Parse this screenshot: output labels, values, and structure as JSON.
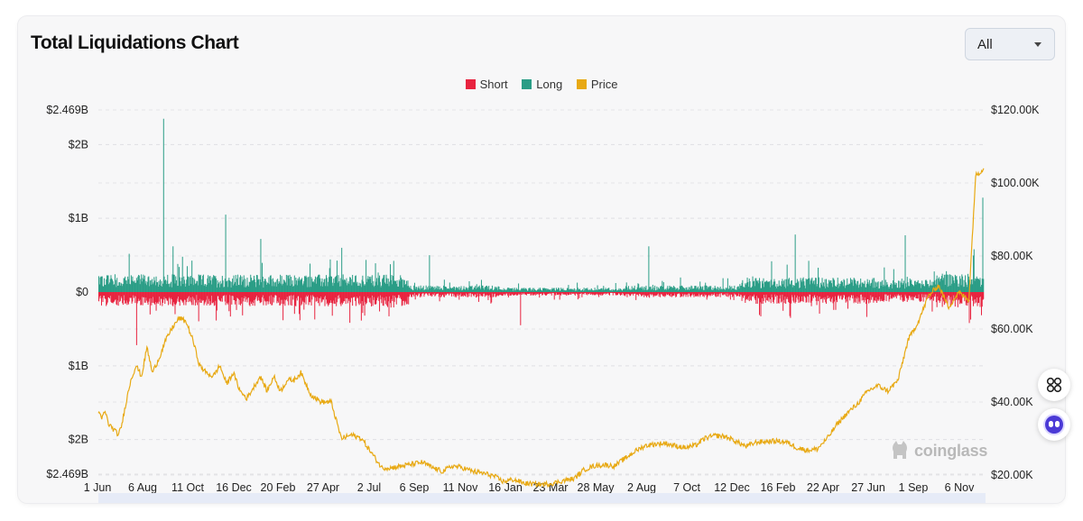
{
  "header": {
    "title": "Total Liquidations Chart"
  },
  "range_select": {
    "value": "All"
  },
  "side_buttons": [
    "grid-apps",
    "ai-assistant"
  ],
  "watermark": "coinglass",
  "colors": {
    "short": "#e8233f",
    "long": "#2a9d86",
    "price": "#e8a913"
  },
  "chart_data": {
    "type": "bar",
    "title": "Total Liquidations Chart",
    "legend": [
      "Short",
      "Long",
      "Price"
    ],
    "legend_position": "top-center",
    "grid": true,
    "x_tick_labels": [
      "1 Jun",
      "6 Aug",
      "11 Oct",
      "16 Dec",
      "20 Feb",
      "27 Apr",
      "2 Jul",
      "6 Sep",
      "11 Nov",
      "16 Jan",
      "23 Mar",
      "28 May",
      "2 Aug",
      "7 Oct",
      "12 Dec",
      "16 Feb",
      "22 Apr",
      "27 Jun",
      "1 Sep",
      "6 Nov"
    ],
    "y_left": {
      "range": [
        -2.469,
        2.469
      ],
      "ticks": [
        2.469,
        2,
        1,
        0,
        -1,
        -2,
        -2.469
      ],
      "tick_labels": [
        "$2.469B",
        "$2B",
        "$1B",
        "$0",
        "$1B",
        "$2B",
        "$2.469B"
      ]
    },
    "y_right": {
      "range": [
        20,
        120
      ],
      "ticks": [
        120,
        100,
        80,
        60,
        40,
        20
      ],
      "tick_labels": [
        "$120.00K",
        "$100.00K",
        "$80.00K",
        "$60.00K",
        "$40.00K",
        "$20.00K"
      ]
    },
    "price_series": {
      "name": "Price",
      "unit": "thousand USD",
      "x_days": [
        0,
        5,
        10,
        15,
        20,
        25,
        30,
        35,
        40,
        48,
        56,
        64,
        72,
        80,
        90,
        100,
        110,
        120,
        130,
        140,
        150,
        160,
        170,
        180,
        190,
        200,
        210,
        220,
        230,
        240,
        250,
        260,
        270,
        280,
        290,
        300,
        315,
        330,
        345,
        360,
        375,
        390,
        405,
        420,
        435,
        450,
        465,
        480,
        495,
        510,
        525,
        540,
        555,
        570,
        585,
        600,
        615,
        630,
        645,
        660,
        675,
        690,
        705,
        720,
        735,
        750,
        765,
        780,
        795,
        810,
        825,
        840,
        855,
        870,
        885,
        900,
        915,
        930,
        945,
        960,
        975,
        990,
        1005,
        1020,
        1035,
        1050,
        1065,
        1080,
        1095,
        1110,
        1125,
        1140,
        1155,
        1170,
        1185,
        1200,
        1215,
        1230,
        1245,
        1260,
        1275,
        1290,
        1300,
        1312
      ],
      "values": [
        37,
        35.5,
        37.5,
        34,
        33,
        32,
        31,
        34,
        39,
        46,
        50,
        47,
        55,
        48,
        52,
        57,
        60.5,
        63,
        62,
        57,
        50,
        48,
        47,
        50,
        45,
        48,
        43,
        41,
        44,
        47,
        43,
        47,
        43,
        46,
        46,
        48,
        42,
        40,
        40,
        30,
        31,
        30,
        26,
        22,
        22,
        22.5,
        23,
        23.5,
        22,
        21,
        22.5,
        22,
        21,
        20.5,
        19.8,
        18.2,
        18.8,
        17.8,
        17.5,
        17.4,
        17.8,
        18.5,
        19,
        21.5,
        22.5,
        22.8,
        22.5,
        24.5,
        26.5,
        28,
        28.5,
        28.7,
        28,
        27.5,
        28.1,
        30.2,
        30.8,
        30.5,
        29.2,
        27.8,
        29,
        29.2,
        29.3,
        29,
        27.5,
        26.8,
        27.1,
        30,
        34,
        37,
        39.5,
        43,
        44.5,
        43,
        46,
        57,
        62,
        69,
        72,
        66,
        70,
        68,
        102,
        104
      ]
    },
    "series": [
      {
        "name": "Long",
        "peaks": [
          {
            "x_days": 96,
            "value": 2.35
          },
          {
            "x_days": 188,
            "value": 1.05
          },
          {
            "x_days": 110,
            "value": 0.62
          },
          {
            "x_days": 240,
            "value": 0.72
          },
          {
            "x_days": 360,
            "value": 0.6
          },
          {
            "x_days": 490,
            "value": 0.5
          },
          {
            "x_days": 815,
            "value": 0.62
          },
          {
            "x_days": 1032,
            "value": 0.78
          },
          {
            "x_days": 1195,
            "value": 0.77
          },
          {
            "x_days": 1297,
            "value": 0.58
          },
          {
            "x_days": 1310,
            "value": 1.28
          }
        ]
      },
      {
        "name": "Short",
        "peaks": [
          {
            "x_days": 56,
            "value": -0.72
          },
          {
            "x_days": 625,
            "value": -0.45
          },
          {
            "x_days": 1025,
            "value": -0.35
          },
          {
            "x_days": 1290,
            "value": -0.42
          }
        ]
      }
    ]
  }
}
